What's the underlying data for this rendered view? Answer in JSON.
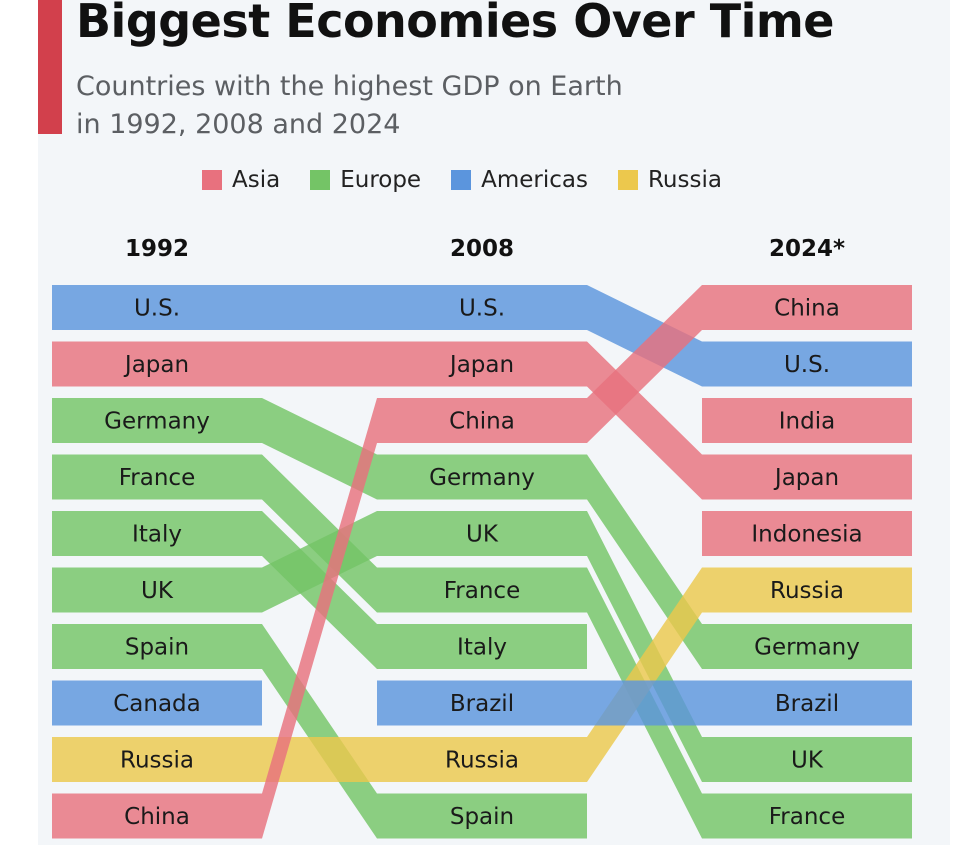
{
  "header": {
    "title": "Biggest Economies Over Time",
    "subtitle_line1": "Countries with the highest GDP on Earth",
    "subtitle_line2": "in 1992, 2008 and 2024"
  },
  "legend": [
    {
      "label": "Asia",
      "region": "asia"
    },
    {
      "label": "Europe",
      "region": "europe"
    },
    {
      "label": "Americas",
      "region": "americas"
    },
    {
      "label": "Russia",
      "region": "russia"
    }
  ],
  "colors": {
    "asia": "#e8717e",
    "europe": "#74c466",
    "americas": "#5b95dd",
    "russia": "#ecc84d",
    "accent": "#d2404c"
  },
  "chart_data": {
    "type": "bump",
    "title": "Biggest Economies Over Time",
    "subtitle": "Countries with the highest GDP on Earth in 1992, 2008 and 2024",
    "years": [
      "1992",
      "2008",
      "2024*"
    ],
    "rankings": [
      [
        "U.S.",
        "Japan",
        "Germany",
        "France",
        "Italy",
        "UK",
        "Spain",
        "Canada",
        "Russia",
        "China"
      ],
      [
        "U.S.",
        "Japan",
        "China",
        "Germany",
        "UK",
        "France",
        "Italy",
        "Brazil",
        "Russia",
        "Spain"
      ],
      [
        "China",
        "U.S.",
        "India",
        "Japan",
        "Indonesia",
        "Russia",
        "Germany",
        "Brazil",
        "UK",
        "France"
      ]
    ],
    "regions": {
      "U.S.": "americas",
      "Canada": "americas",
      "Brazil": "americas",
      "Japan": "asia",
      "China": "asia",
      "India": "asia",
      "Indonesia": "asia",
      "Germany": "europe",
      "France": "europe",
      "Italy": "europe",
      "UK": "europe",
      "Spain": "europe",
      "Russia": "russia"
    }
  }
}
